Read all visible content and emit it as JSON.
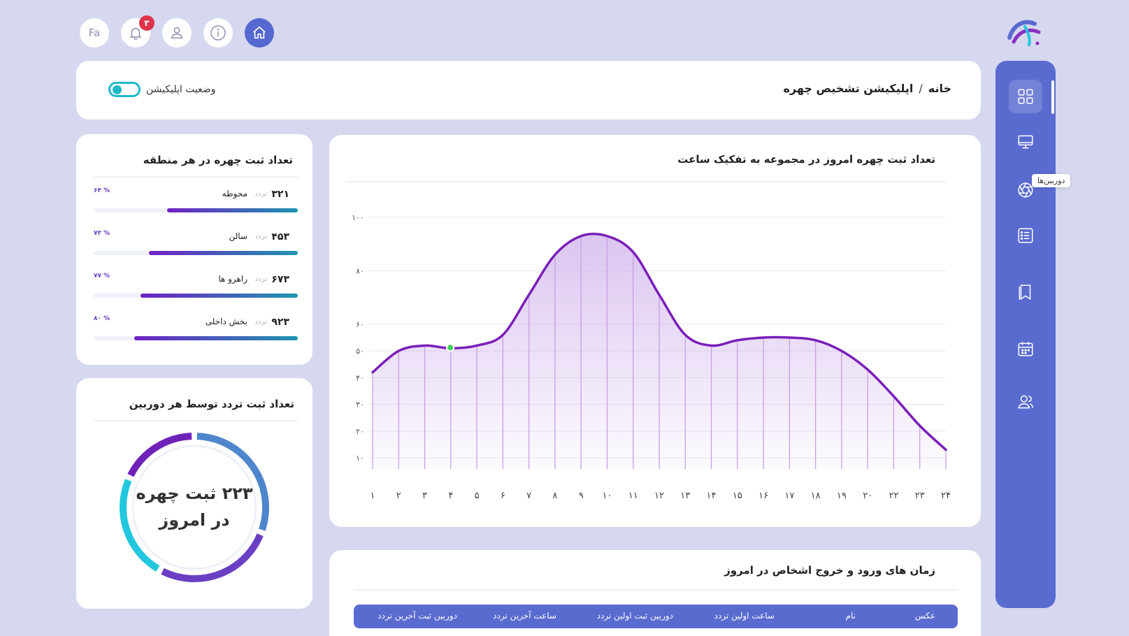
{
  "topbar": {
    "lang_label": "Fa",
    "notification_count": "۳"
  },
  "sidebar": {
    "tooltip": "دوربین‌ها"
  },
  "header": {
    "breadcrumb_home": "خانه",
    "breadcrumb_sep": "/",
    "breadcrumb_current": "اپلیکیشن تشخیص چهره",
    "app_status_label": "وضعیت اپلیکیشن"
  },
  "regions_card": {
    "title": "تعداد ثبت چهره در هر منطقه",
    "items": [
      {
        "count": "۳۲۱",
        "unit": "تردد",
        "name": "محوطه",
        "percent_label": "۶۴ %",
        "percent": 64
      },
      {
        "count": "۴۵۳",
        "unit": "تردد",
        "name": "سالن",
        "percent_label": "۷۳ %",
        "percent": 73
      },
      {
        "count": "۶۷۳",
        "unit": "تردد",
        "name": "راهرو ها",
        "percent_label": "۷۷ %",
        "percent": 77
      },
      {
        "count": "۹۲۳",
        "unit": "تردد",
        "name": "بخش داخلی",
        "percent_label": "۸۰ %",
        "percent": 80
      }
    ]
  },
  "camera_card": {
    "title": "تعداد ثبت تردد توسط هر دوربین",
    "center_line1": "۲۲۳ ثبت چهره",
    "center_line2": "در امروز",
    "segments": [
      {
        "fraction": 0.27,
        "color": "#4e86cc"
      },
      {
        "fraction": 0.24,
        "color": "#6a3fc4"
      },
      {
        "fraction": 0.21,
        "color": "#22c7dd"
      },
      {
        "fraction": 0.16,
        "color": "#6f22b8"
      }
    ]
  },
  "chart_card": {
    "title": "تعداد ثبت چهره امروز در مجموعه به تفکیک ساعت"
  },
  "chart_data": {
    "type": "area",
    "title": "تعداد ثبت چهره امروز در مجموعه به تفکیک ساعت",
    "x": [
      "۱",
      "۲",
      "۳",
      "۴",
      "۵",
      "۶",
      "۷",
      "۸",
      "۹",
      "۱۰",
      "۱۱",
      "۱۲",
      "۱۳",
      "۱۴",
      "۱۵",
      "۱۶",
      "۱۷",
      "۱۸",
      "۱۹",
      "۲۰",
      "۲۲",
      "۲۳",
      "۲۴"
    ],
    "values": [
      42,
      50,
      52,
      51,
      52,
      56,
      71,
      86,
      93,
      93,
      87,
      71,
      56,
      52,
      54,
      55,
      55,
      54,
      50,
      43,
      33,
      22,
      13
    ],
    "y_ticks": [
      10,
      20,
      30,
      40,
      50,
      60,
      80,
      100
    ],
    "y_tick_labels": [
      "۱۰",
      "۲۰",
      "۳۰",
      "۴۰",
      "۵۰",
      "۶۰",
      "۸۰",
      "۱۰۰"
    ],
    "ylim": [
      10,
      100
    ],
    "grid": true,
    "line_color": "#7a1fb8",
    "fill_color": "#c8a6e8",
    "marker_color": "#3ecf5a",
    "marker_index": 3
  },
  "table_card": {
    "title": "زمان های ورود و خروج اشخاص در امروز",
    "columns": [
      "عکس",
      "نام",
      "ساعت اولین تردد",
      "دوربین ثبت اولین تردد",
      "ساعت آخرین تردد",
      "دوربین ثبت آخرین تردد"
    ]
  }
}
